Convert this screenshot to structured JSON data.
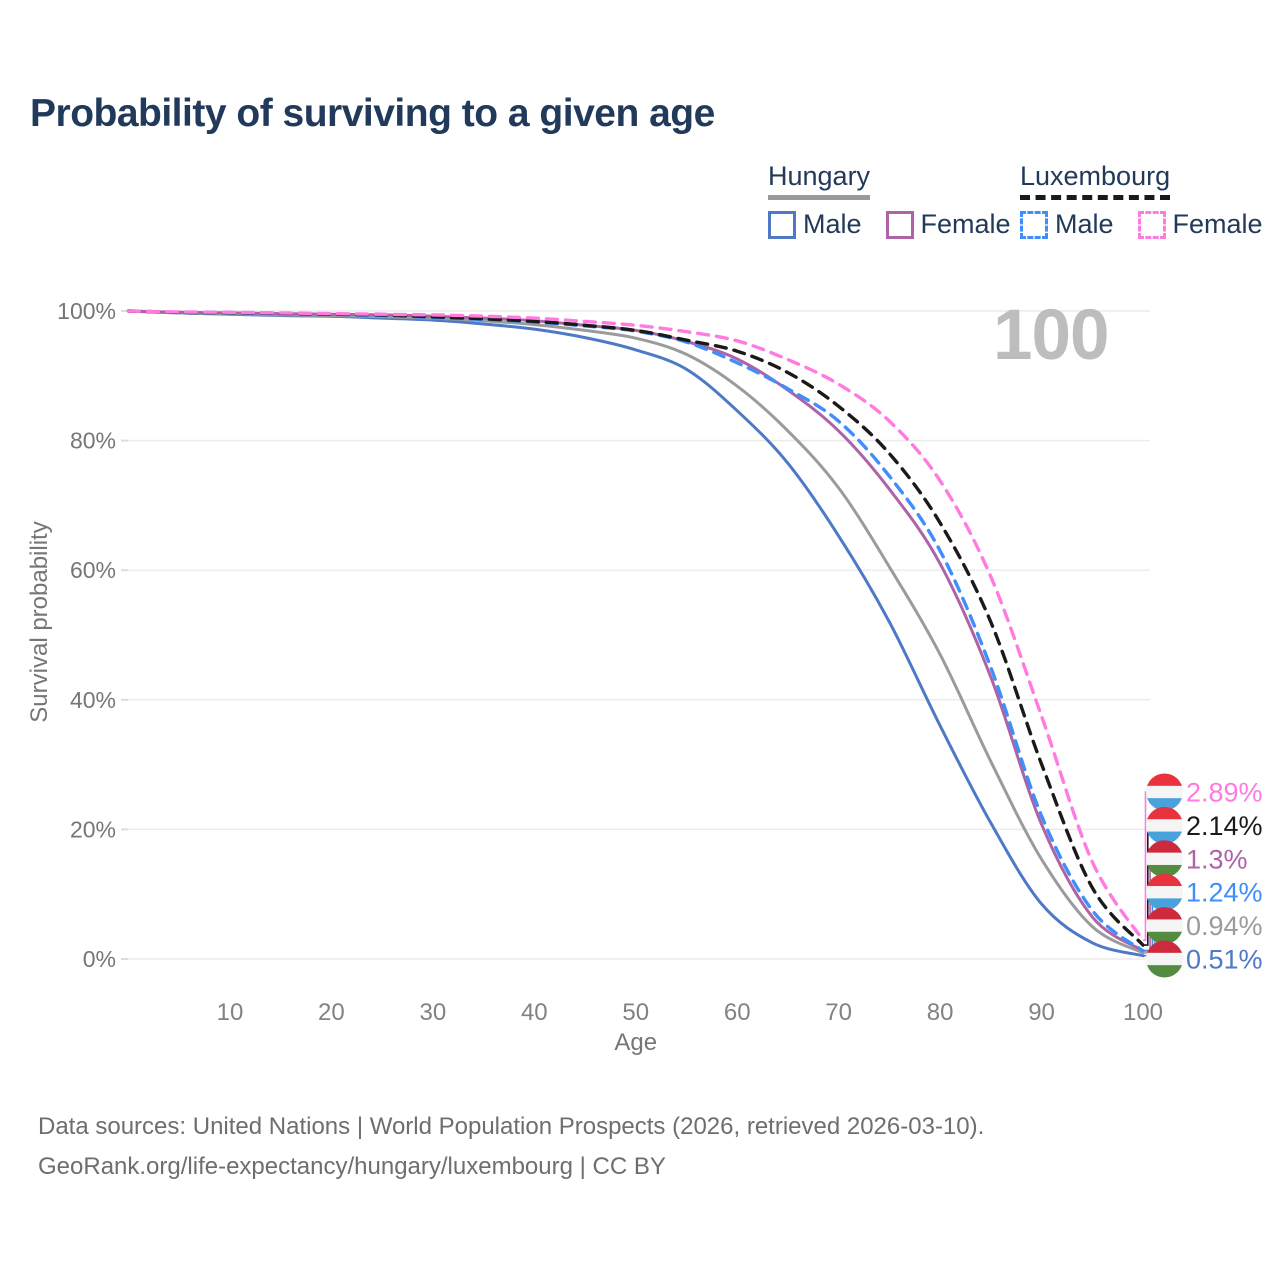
{
  "title": "Probability of surviving to a given age",
  "watermark": "100",
  "legend": {
    "groups": [
      {
        "country": "Hungary",
        "line_style": "solid",
        "underline_color": "#9a9a9a",
        "items": [
          {
            "label": "Male"
          },
          {
            "label": "Female"
          }
        ]
      },
      {
        "country": "Luxembourg",
        "line_style": "dashed",
        "underline_color": "#1a1a1a",
        "items": [
          {
            "label": "Male"
          },
          {
            "label": "Female"
          }
        ]
      }
    ]
  },
  "flag_colors": {
    "hu": [
      "#cd2a3e",
      "#f5f5f5",
      "#538b40"
    ],
    "lu": [
      "#e8333f",
      "#f5f5f5",
      "#4aa2dc"
    ]
  },
  "chart_data": {
    "type": "line",
    "title": "Probability of surviving to a given age",
    "xlabel": "Age",
    "ylabel": "Survival probability",
    "xlim": [
      0,
      100
    ],
    "ylim": [
      0,
      100
    ],
    "grid": "horizontal",
    "x_ticks": [
      10,
      20,
      30,
      40,
      50,
      60,
      70,
      80,
      90,
      100
    ],
    "y_tick_values": [
      0,
      20,
      40,
      60,
      80,
      100
    ],
    "y_tick_labels": [
      "0%",
      "20%",
      "40%",
      "60%",
      "80%",
      "100%"
    ],
    "legend_position": "top-right",
    "x": [
      0,
      5,
      10,
      15,
      20,
      25,
      30,
      35,
      40,
      45,
      50,
      55,
      60,
      65,
      70,
      75,
      80,
      85,
      90,
      95,
      100
    ],
    "series": [
      {
        "id": "hungary-male",
        "name": "Hungary Male",
        "color": "#4e79c7",
        "dash": false,
        "flag": "hu",
        "end_label": "0.51%",
        "values": [
          100,
          99.7,
          99.5,
          99.3,
          99.2,
          98.9,
          98.6,
          98.0,
          97.2,
          95.9,
          94.0,
          91.0,
          84.6,
          76.5,
          65.3,
          52.0,
          36.0,
          21.0,
          8.5,
          2.5,
          0.51
        ]
      },
      {
        "id": "hungary-both",
        "name": "Hungary",
        "color": "#9b9b9b",
        "dash": false,
        "flag": "hu",
        "end_label": "0.94%",
        "values": [
          100,
          99.7,
          99.6,
          99.4,
          99.3,
          99.1,
          98.9,
          98.5,
          97.9,
          97.0,
          95.8,
          93.3,
          88.4,
          81.5,
          72.7,
          60.5,
          47.0,
          30.5,
          15.4,
          5.0,
          0.94
        ]
      },
      {
        "id": "hungary-female",
        "name": "Hungary Female",
        "color": "#ad63a6",
        "dash": false,
        "flag": "hu",
        "end_label": "1.3%",
        "values": [
          100,
          99.8,
          99.7,
          99.6,
          99.5,
          99.4,
          99.2,
          98.9,
          98.5,
          97.8,
          97.0,
          95.3,
          92.6,
          87.8,
          81.5,
          72.5,
          61.0,
          43.5,
          20.8,
          6.5,
          1.3
        ]
      },
      {
        "id": "luxembourg-male",
        "name": "Luxembourg Male",
        "color": "#3f8efc",
        "dash": true,
        "flag": "lu",
        "end_label": "1.24%",
        "values": [
          100,
          99.8,
          99.7,
          99.6,
          99.5,
          99.3,
          99.0,
          98.7,
          98.3,
          97.7,
          96.9,
          95.2,
          92.0,
          88.0,
          83.0,
          74.5,
          63.0,
          45.0,
          22.1,
          7.5,
          1.24
        ]
      },
      {
        "id": "luxembourg-both",
        "name": "Luxembourg",
        "color": "#1a1a1a",
        "dash": true,
        "flag": "lu",
        "end_label": "2.14%",
        "values": [
          100,
          99.8,
          99.75,
          99.65,
          99.5,
          99.4,
          99.1,
          98.8,
          98.4,
          97.8,
          97.0,
          95.5,
          93.8,
          90.5,
          85.3,
          78.0,
          67.3,
          52.0,
          30.1,
          11.0,
          2.14
        ]
      },
      {
        "id": "luxembourg-female",
        "name": "Luxembourg Female",
        "color": "#ff7be0",
        "dash": true,
        "flag": "lu",
        "end_label": "2.89%",
        "values": [
          100,
          99.85,
          99.8,
          99.7,
          99.6,
          99.5,
          99.4,
          99.2,
          98.9,
          98.4,
          97.8,
          96.8,
          95.4,
          92.5,
          88.7,
          83.0,
          73.8,
          59.0,
          37.5,
          15.0,
          2.89
        ]
      }
    ]
  },
  "footer": {
    "line1": "Data sources: United Nations | World Population Prospects (2026, retrieved 2026-03-10).",
    "line2": "GeoRank.org/life-expectancy/hungary/luxembourg | CC BY"
  }
}
